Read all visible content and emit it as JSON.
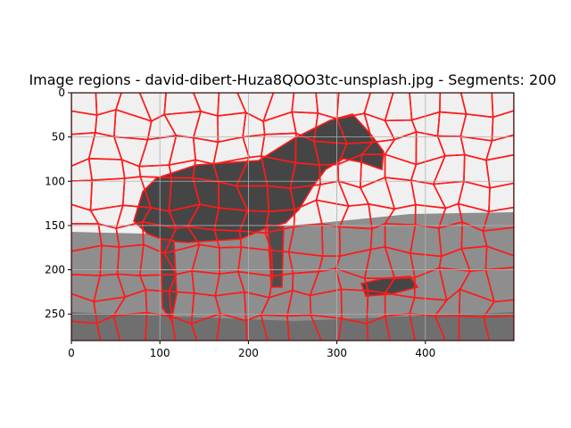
{
  "chart_data": {
    "type": "heatmap",
    "title": "Image regions - david-dibert-Huza8QOO3tc-unsplash.jpg - Segments: 200",
    "xlabel": "",
    "ylabel": "",
    "xlim": [
      0,
      500
    ],
    "ylim": [
      280,
      0
    ],
    "x_ticks": [
      0,
      100,
      200,
      300,
      400
    ],
    "y_ticks": [
      0,
      50,
      100,
      150,
      200,
      250
    ],
    "grid": true,
    "segment_count": 200,
    "boundary_color": "#ff1a1a",
    "region_colors": {
      "sky": "#f2f2f2",
      "ground": "#8f8f8f",
      "ground_dark": "#6e6e6e",
      "horse": "#474747",
      "horse_light": "#5a5a5a"
    }
  }
}
